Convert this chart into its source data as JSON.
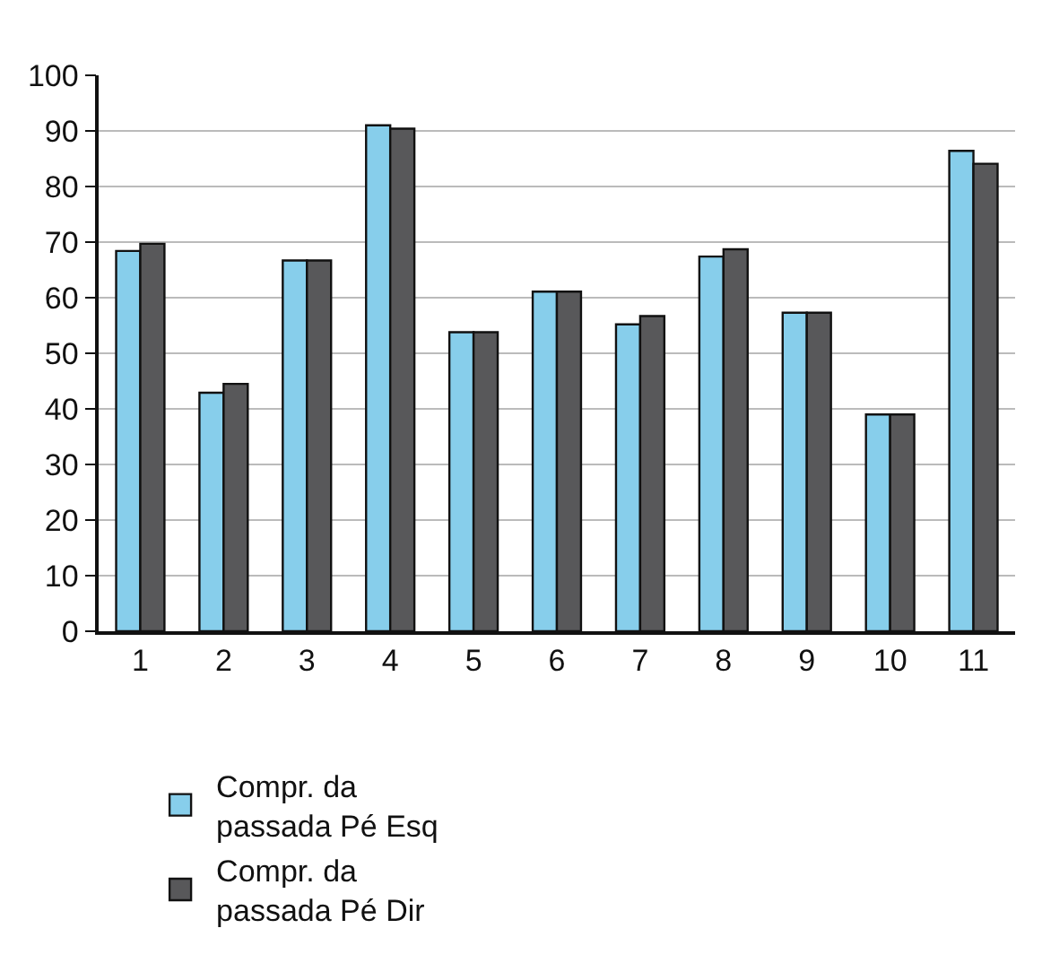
{
  "chart_data": {
    "type": "bar",
    "categories": [
      "1",
      "2",
      "3",
      "4",
      "5",
      "6",
      "7",
      "8",
      "9",
      "10",
      "11"
    ],
    "series": [
      {
        "name": "Compr. da passada Pé Esq",
        "color": "#87ceeb",
        "values": [
          68.4,
          42.9,
          66.7,
          91.0,
          53.8,
          61.1,
          55.2,
          67.4,
          57.3,
          39.0,
          86.4
        ]
      },
      {
        "name": "Compr. da passada Pé Dir",
        "color": "#58585a",
        "values": [
          69.7,
          44.5,
          66.7,
          90.4,
          53.8,
          61.1,
          56.7,
          68.7,
          57.3,
          39.0,
          84.1
        ]
      }
    ],
    "ylim": [
      0,
      100
    ],
    "yticks": [
      0,
      10,
      20,
      30,
      40,
      50,
      60,
      70,
      80,
      90,
      100
    ],
    "grid": "y",
    "legend": "bottom"
  }
}
